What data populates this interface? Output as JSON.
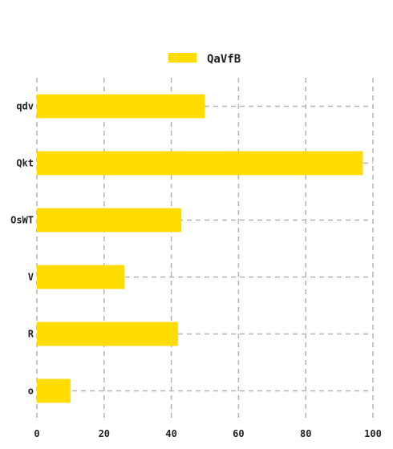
{
  "chart_data": {
    "type": "bar",
    "orientation": "horizontal",
    "categories": [
      "qdv",
      "Qkt",
      "OsWT",
      "V",
      "R",
      "o"
    ],
    "series": [
      {
        "name": "QaVfB",
        "values": [
          50,
          97,
          43,
          26,
          42,
          10
        ]
      }
    ],
    "xlim": [
      0,
      100
    ],
    "xticks": [
      0,
      20,
      40,
      60,
      80,
      100
    ],
    "grid": true,
    "legend_position": "top-center",
    "colors": {
      "bar": "#FFDC00",
      "grid": "#b3b3b3",
      "text": "#222222"
    }
  }
}
